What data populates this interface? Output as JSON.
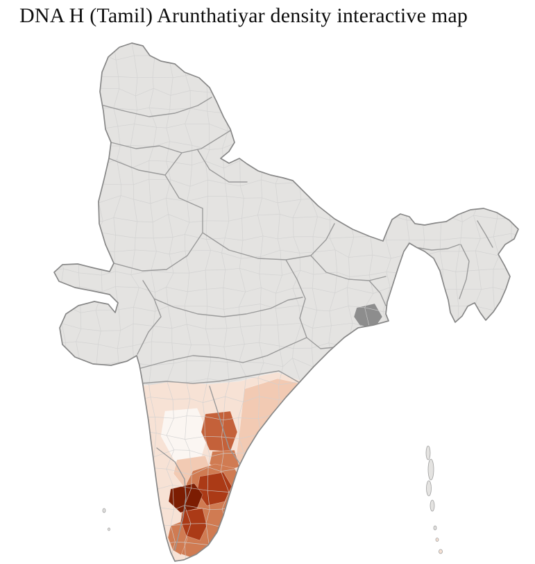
{
  "title": "DNA H (Tamil) Arunthatiyar density interactive map",
  "map": {
    "background": "#ffffff",
    "land_fill": "#e4e3e1",
    "outer_border": "#878787",
    "state_border": "#9a9a9a",
    "district_border": "#d0d0d0",
    "density_colors": {
      "none": "#e4e3e1",
      "pale": "#fbf6f2",
      "lowest": "#f7e2d5",
      "low": "#f2cab3",
      "medium": "#d07b52",
      "high": "#c4613a",
      "higher": "#ab3a16",
      "highest": "#7c1d02",
      "gray_highlight": "#8d8d8d"
    }
  }
}
